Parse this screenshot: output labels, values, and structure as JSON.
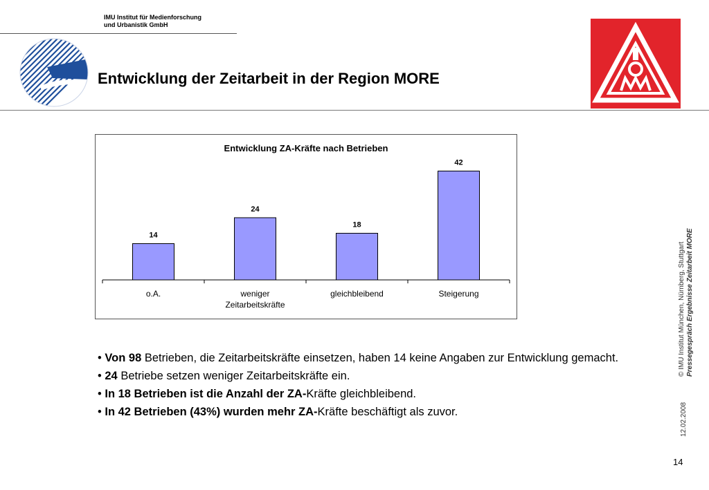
{
  "header": {
    "institute_line1": "IMU Institut für Medienforschung",
    "institute_line2": "und Urbanistik GmbH",
    "title": "Entwicklung der Zeitarbeit in der Region MORE"
  },
  "chart_data": {
    "type": "bar",
    "title": "Entwicklung ZA-Kräfte nach Betrieben",
    "categories": [
      "o.A.",
      "weniger Zeitarbeitskräfte",
      "gleichbleibend",
      "Steigerung"
    ],
    "category_lines": [
      [
        "o.A."
      ],
      [
        "weniger",
        "Zeitarbeitskräfte"
      ],
      [
        "gleichbleibend"
      ],
      [
        "Steigerung"
      ]
    ],
    "values": [
      14,
      24,
      18,
      42
    ],
    "data_labels": [
      "14",
      "24",
      "18",
      "42"
    ],
    "xlabel": "",
    "ylabel": "",
    "ylim": [
      0,
      48
    ],
    "grid": false,
    "legend": "none",
    "bar_color": "#9999ff"
  },
  "bullets": [
    {
      "strong": "Von 98",
      "rest": " Betrieben, die Zeitarbeitskräfte einsetzen, haben 14 keine Angaben zur Entwicklung gemacht."
    },
    {
      "strong": "24",
      "rest": " Betriebe setzen weniger Zeitarbeitskräfte ein."
    },
    {
      "strong": "In 18 Betrieben ist die Anzahl der ZA-",
      "rest": "Kräfte gleichbleibend."
    },
    {
      "strong": "In 42 Betrieben (43%) wurden mehr ZA-",
      "rest": "Kräfte beschäftigt als zuvor."
    }
  ],
  "sidebar": {
    "copyright": "© IMU Institut München, Nürnberg, Stuttgart",
    "subtitle": "Pressegespräch Ergebnisse Zeitarbeit MORE",
    "date": "12.02.2008"
  },
  "page_number": "14",
  "colors": {
    "igm_red": "#e2242b",
    "imu_blue": "#1f4f9c"
  },
  "logos": {
    "left": "imu-logo",
    "right": "ig-metall-logo"
  }
}
